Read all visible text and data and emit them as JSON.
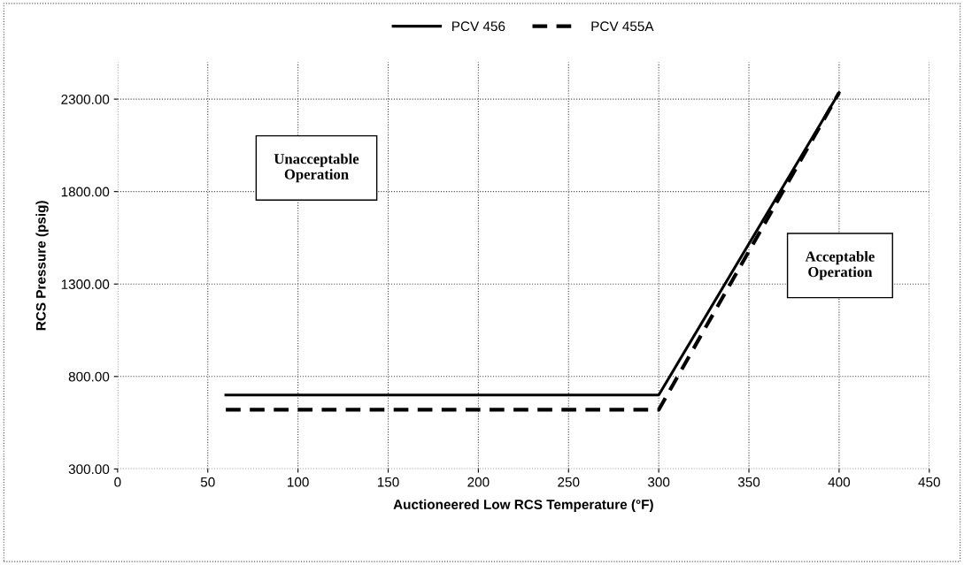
{
  "chart_data": {
    "type": "line",
    "xlabel": "Auctioneered Low RCS Temperature (°F)",
    "ylabel": "RCS Pressure (psig)",
    "series": [
      {
        "name": "PCV 456",
        "color": "#000000",
        "line_style": "solid",
        "x": [
          60,
          300,
          400
        ],
        "values": [
          700,
          700,
          2335
        ]
      },
      {
        "name": "PCV 455A",
        "color": "#000000",
        "line_style": "dashed",
        "x": [
          60,
          300,
          400
        ],
        "values": [
          620,
          620,
          2335
        ]
      }
    ],
    "xlim": [
      0,
      450
    ],
    "xticks": [
      0,
      50,
      100,
      150,
      200,
      250,
      300,
      350,
      400,
      450
    ],
    "ylim": [
      300,
      2500
    ],
    "yticks": [
      {
        "value": 300,
        "label": "300.00"
      },
      {
        "value": 800,
        "label": "800.00"
      },
      {
        "value": 1300,
        "label": "1300.00"
      },
      {
        "value": 1800,
        "label": "1800.00"
      },
      {
        "value": 2300,
        "label": "2300.00"
      }
    ],
    "grid": true,
    "legend": "top",
    "marker": "none",
    "annotations": [
      "Unacceptable\nOperation",
      "Acceptable\nOperation"
    ]
  }
}
